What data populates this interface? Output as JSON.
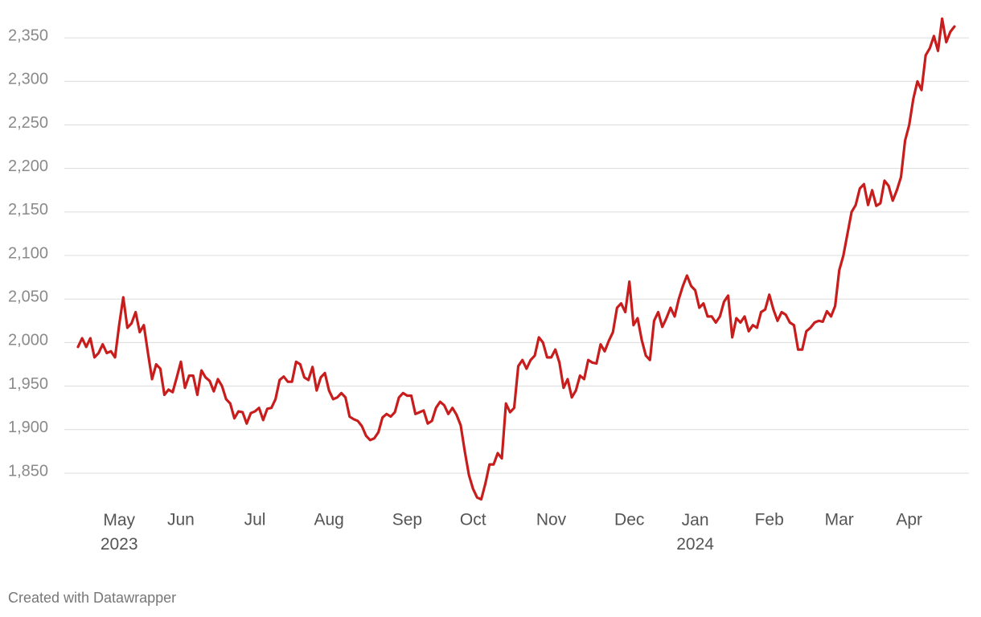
{
  "chart_data": {
    "type": "line",
    "footer": "Created with Datawrapper",
    "color": "#c71e1d",
    "grid": true,
    "ylim": [
      1820,
      2375
    ],
    "yticks": [
      {
        "value": 1850,
        "label": "1,850"
      },
      {
        "value": 1900,
        "label": "1,900"
      },
      {
        "value": 1950,
        "label": "1,950"
      },
      {
        "value": 2000,
        "label": "2,000"
      },
      {
        "value": 2050,
        "label": "2,050"
      },
      {
        "value": 2100,
        "label": "2,100"
      },
      {
        "value": 2150,
        "label": "2,150"
      },
      {
        "value": 2200,
        "label": "2,200"
      },
      {
        "value": 2250,
        "label": "2,250"
      },
      {
        "value": 2300,
        "label": "2,300"
      },
      {
        "value": 2350,
        "label": "2,350"
      }
    ],
    "categories": [
      null,
      null,
      null,
      null,
      null,
      null,
      null,
      null,
      null,
      null,
      "May 2023",
      null,
      null,
      null,
      null,
      null,
      null,
      null,
      null,
      null,
      null,
      null,
      null,
      null,
      null,
      "Jun",
      null,
      null,
      null,
      null,
      null,
      null,
      null,
      null,
      null,
      null,
      null,
      null,
      null,
      null,
      null,
      null,
      null,
      "Jul",
      null,
      null,
      null,
      null,
      null,
      null,
      null,
      null,
      null,
      null,
      null,
      null,
      null,
      null,
      null,
      null,
      null,
      "Aug",
      null,
      null,
      null,
      null,
      null,
      null,
      null,
      null,
      null,
      null,
      null,
      null,
      null,
      null,
      null,
      null,
      null,
      null,
      "Sep",
      null,
      null,
      null,
      null,
      null,
      null,
      null,
      null,
      null,
      null,
      null,
      null,
      null,
      null,
      null,
      "Oct",
      null,
      null,
      null,
      null,
      null,
      null,
      null,
      null,
      null,
      null,
      null,
      null,
      null,
      null,
      null,
      null,
      null,
      null,
      "Nov",
      null,
      null,
      null,
      null,
      null,
      null,
      null,
      null,
      null,
      null,
      null,
      null,
      null,
      null,
      null,
      null,
      null,
      null,
      "Dec",
      null,
      null,
      null,
      null,
      null,
      null,
      null,
      null,
      null,
      null,
      null,
      null,
      null,
      null,
      null,
      "Jan 2024",
      null,
      null,
      null,
      null,
      null,
      null,
      null,
      null,
      null,
      null,
      null,
      null,
      null,
      null,
      null,
      null,
      null,
      "Feb",
      null,
      null,
      null,
      null,
      null,
      null,
      null,
      null,
      null,
      null,
      null,
      null,
      null,
      null,
      null,
      null,
      "Mar",
      null,
      null,
      null,
      null,
      null,
      null,
      null,
      null,
      null,
      null,
      null,
      null,
      null,
      null,
      null,
      null,
      "Apr",
      null,
      null,
      null,
      null,
      null,
      null,
      null,
      null,
      null,
      null,
      null
    ],
    "values": [
      1995,
      2005,
      1995,
      2005,
      1983,
      1988,
      1998,
      1988,
      1990,
      1983,
      2020,
      2052,
      2017,
      2022,
      2035,
      2012,
      2020,
      1988,
      1958,
      1975,
      1970,
      1940,
      1946,
      1943,
      1960,
      1978,
      1948,
      1962,
      1962,
      1940,
      1968,
      1960,
      1956,
      1944,
      1958,
      1950,
      1935,
      1930,
      1913,
      1921,
      1920,
      1907,
      1919,
      1921,
      1925,
      1911,
      1924,
      1925,
      1935,
      1957,
      1961,
      1955,
      1955,
      1978,
      1975,
      1960,
      1957,
      1972,
      1945,
      1960,
      1965,
      1945,
      1935,
      1937,
      1942,
      1937,
      1915,
      1912,
      1910,
      1904,
      1893,
      1888,
      1890,
      1897,
      1914,
      1918,
      1915,
      1920,
      1937,
      1942,
      1939,
      1939,
      1918,
      1920,
      1922,
      1907,
      1910,
      1925,
      1932,
      1928,
      1918,
      1925,
      1917,
      1905,
      1875,
      1848,
      1832,
      1822,
      1820,
      1838,
      1860,
      1860,
      1873,
      1867,
      1930,
      1920,
      1925,
      1973,
      1980,
      1970,
      1980,
      1985,
      2006,
      2000,
      1983,
      1983,
      1992,
      1977,
      1948,
      1958,
      1937,
      1945,
      1962,
      1958,
      1980,
      1977,
      1976,
      1998,
      1990,
      2002,
      2012,
      2040,
      2045,
      2035,
      2070,
      2020,
      2028,
      2003,
      1985,
      1980,
      2025,
      2035,
      2018,
      2028,
      2040,
      2030,
      2050,
      2065,
      2077,
      2065,
      2060,
      2040,
      2045,
      2030,
      2030,
      2023,
      2030,
      2047,
      2054,
      2006,
      2028,
      2023,
      2030,
      2013,
      2020,
      2017,
      2035,
      2038,
      2055,
      2038,
      2025,
      2035,
      2032,
      2023,
      2020,
      1992,
      1992,
      2013,
      2017,
      2023,
      2025,
      2024,
      2036,
      2030,
      2042,
      2083,
      2100,
      2125,
      2150,
      2158,
      2177,
      2182,
      2158,
      2175,
      2157,
      2160,
      2186,
      2180,
      2163,
      2175,
      2190,
      2232,
      2250,
      2280,
      2300,
      2290,
      2330,
      2338,
      2352,
      2335,
      2372,
      2345,
      2357,
      2363
    ]
  }
}
